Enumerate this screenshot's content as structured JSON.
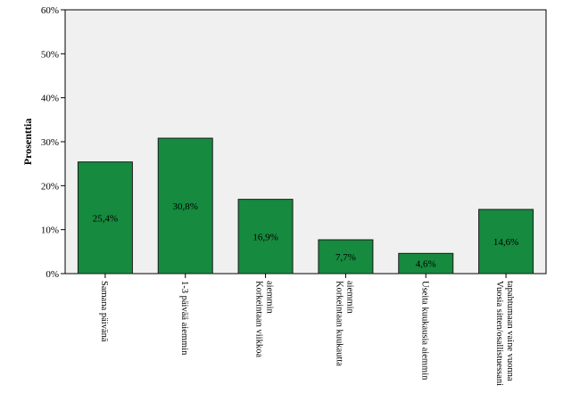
{
  "chart_data": {
    "type": "bar",
    "title": "",
    "ylabel": "Prosenttia",
    "xlabel": "",
    "ylim": [
      0,
      60
    ],
    "yticks": [
      "0%",
      "10%",
      "20%",
      "30%",
      "40%",
      "50%",
      "60%"
    ],
    "categories": [
      [
        "Samana päivänä"
      ],
      [
        "1-3 päivää aiemmin"
      ],
      [
        "Korkeintaan viikkoa",
        "aiemmin"
      ],
      [
        "Korkeintaan kuukautta",
        "aiemmin"
      ],
      [
        "Useita kuukausia aiemmin"
      ],
      [
        "Vuosia sitten/osallistuessani",
        "tapahtumaan vaine vuonna"
      ]
    ],
    "values": [
      25.4,
      30.8,
      16.9,
      7.7,
      4.6,
      14.6
    ],
    "value_labels": [
      "25,4%",
      "30,8%",
      "16,9%",
      "7,7%",
      "4,6%",
      "14,6%"
    ],
    "grid": false,
    "colors": {
      "bar_fill": "#168a3e",
      "bar_stroke": "#1a1a1a",
      "plot_bg": "#f0f0f0",
      "axis": "#000000"
    }
  }
}
